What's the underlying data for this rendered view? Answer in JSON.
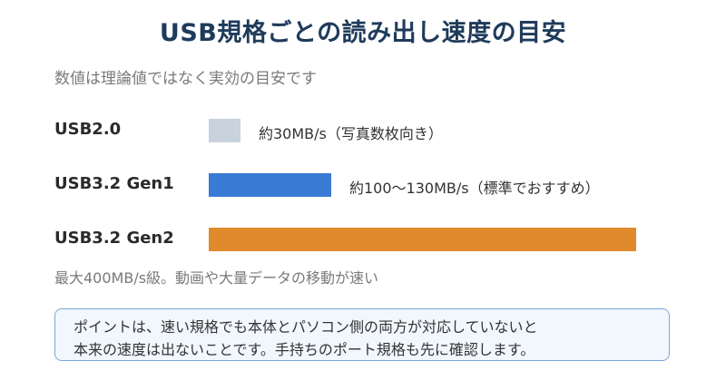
{
  "page": {
    "title": "USB規格ごとの読み出し速度の目安",
    "subtitle": "数値は理論値ではなく実効の目安です",
    "footnote": "最大400MB/s級。動画や大量データの移動が速い",
    "callout": {
      "line1": "ポイントは、速い規格でも本体とパソコン側の両方が対応していないと",
      "line2": "本来の速度は出ないことです。手持ちのポート規格も先に確認します。"
    }
  },
  "chart_data": {
    "type": "bar",
    "orientation": "horizontal",
    "title": "USB規格ごとの読み出し速度の目安",
    "subtitle": "数値は理論値ではなく実効の目安です",
    "unit": "MB/s",
    "categories": [
      "USB2.0",
      "USB3.2 Gen1",
      "USB3.2 Gen2"
    ],
    "values": [
      30,
      115,
      400
    ],
    "colors": [
      "#c9d3de",
      "#3a7bd5",
      "#e08a2c"
    ],
    "notes": [
      "約30MB/s（写真数枚向き）",
      "約100〜130MB/s（標準でおすすめ）",
      ""
    ],
    "xlim": [
      0,
      425
    ],
    "grid": false
  }
}
